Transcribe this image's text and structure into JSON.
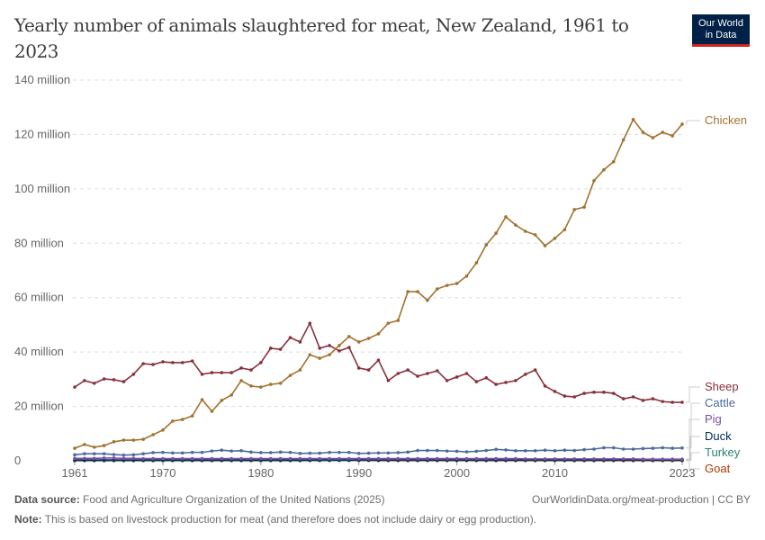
{
  "title": "Yearly number of animals slaughtered for meat, New Zealand, 1961 to 2023",
  "logo": {
    "line1": "Our World",
    "line2": "in Data"
  },
  "footer": {
    "source_label": "Data source:",
    "source_text": "Food and Agriculture Organization of the United Nations (2025)",
    "url": "OurWorldinData.org/meat-production | CC BY",
    "note_label": "Note:",
    "note_text": "This is based on livestock production for meat (and therefore does not include dairy or egg production)."
  },
  "chart_data": {
    "type": "line",
    "title": "Yearly number of animals slaughtered for meat, New Zealand, 1961 to 2023",
    "x_start": 1961,
    "x_end": 2023,
    "xlim": [
      1961,
      2023
    ],
    "ylim": [
      0,
      140000000
    ],
    "x_ticks": [
      "1961",
      "1970",
      "1980",
      "1990",
      "2000",
      "2010",
      "2023"
    ],
    "y_ticks": [
      {
        "value": 0,
        "label": "0"
      },
      {
        "value": 20000000,
        "label": "20 million"
      },
      {
        "value": 40000000,
        "label": "40 million"
      },
      {
        "value": 60000000,
        "label": "60 million"
      },
      {
        "value": 80000000,
        "label": "80 million"
      },
      {
        "value": 100000000,
        "label": "100 million"
      },
      {
        "value": 120000000,
        "label": "120 million"
      },
      {
        "value": 140000000,
        "label": "140 million"
      }
    ],
    "grid": true,
    "legend_placement": "right (end labels)",
    "unit_note": "values in millions",
    "series": [
      {
        "name": "Chicken",
        "color": "#a2722f",
        "values": [
          4.6,
          6,
          5,
          5.6,
          7,
          7.6,
          7.6,
          7.9,
          9.6,
          11.3,
          14.6,
          15.2,
          16.5,
          22.5,
          18.2,
          22.2,
          24.2,
          29.5,
          27.5,
          27.1,
          28.1,
          28.5,
          31.4,
          33.4,
          39,
          37.7,
          39,
          42.4,
          45.7,
          43.7,
          45,
          46.7,
          50.6,
          51.6,
          62.2,
          62.2,
          59,
          63.2,
          64.5,
          65.2,
          67.9,
          72.8,
          79.4,
          83.7,
          89.7,
          86.7,
          84.4,
          83.1,
          79.1,
          81.8,
          85,
          92.4,
          93.3,
          103,
          107,
          110,
          118,
          125.5,
          120.8,
          118.8,
          120.8,
          119.5,
          123.8
        ]
      },
      {
        "name": "Sheep",
        "color": "#883039",
        "values": [
          27.1,
          29.5,
          28.5,
          30.1,
          29.8,
          29.1,
          31.8,
          35.7,
          35.4,
          36.4,
          36.1,
          36.1,
          36.7,
          31.8,
          32.4,
          32.4,
          32.4,
          34.1,
          33.4,
          36.1,
          41.4,
          41,
          45.3,
          43.7,
          50.6,
          41.4,
          42.4,
          40.4,
          41.7,
          34.1,
          33.4,
          37,
          29.5,
          32.1,
          33.4,
          31.1,
          32.1,
          33.1,
          29.5,
          30.8,
          32.1,
          29.1,
          30.5,
          28.1,
          28.8,
          29.5,
          31.8,
          33.4,
          27.5,
          25.5,
          23.8,
          23.5,
          24.8,
          25.2,
          25.2,
          24.8,
          22.8,
          23.5,
          22.2,
          22.8,
          21.8,
          21.5,
          21.5
        ]
      },
      {
        "name": "Cattle",
        "color": "#4c6a9c",
        "values": [
          2.2,
          2.6,
          2.6,
          2.6,
          2.3,
          2.1,
          2.2,
          2.6,
          3.0,
          3.1,
          2.9,
          2.9,
          3.1,
          3.1,
          3.6,
          3.9,
          3.6,
          3.7,
          3.2,
          3.0,
          3.0,
          3.2,
          3.1,
          2.7,
          2.8,
          2.8,
          3.1,
          3.1,
          3.1,
          2.7,
          2.8,
          2.9,
          2.9,
          3.0,
          3.2,
          3.8,
          3.8,
          3.8,
          3.6,
          3.5,
          3.3,
          3.5,
          3.8,
          4.2,
          4.0,
          3.7,
          3.7,
          3.7,
          3.9,
          3.7,
          3.9,
          3.8,
          4.1,
          4.3,
          4.8,
          4.8,
          4.3,
          4.3,
          4.5,
          4.6,
          4.8,
          4.6,
          4.7
        ]
      },
      {
        "name": "Pig",
        "color": "#7b4fa6",
        "values": [
          0.9,
          0.9,
          0.9,
          1.0,
          1.0,
          0.9,
          0.9,
          0.8,
          0.8,
          0.8,
          0.8,
          0.8,
          0.8,
          0.8,
          0.8,
          0.8,
          0.8,
          0.8,
          0.8,
          0.8,
          0.8,
          0.8,
          0.8,
          0.8,
          0.8,
          0.8,
          0.8,
          0.8,
          0.8,
          0.8,
          0.8,
          0.8,
          0.8,
          0.8,
          0.8,
          0.8,
          0.8,
          0.8,
          0.8,
          0.8,
          0.8,
          0.8,
          0.8,
          0.8,
          0.8,
          0.8,
          0.7,
          0.7,
          0.7,
          0.7,
          0.7,
          0.7,
          0.7,
          0.7,
          0.7,
          0.7,
          0.7,
          0.7,
          0.6,
          0.6,
          0.6,
          0.6,
          0.6
        ]
      },
      {
        "name": "Duck",
        "color": "#00295b",
        "values": [
          0.3,
          0.3,
          0.3,
          0.3,
          0.3,
          0.3,
          0.3,
          0.3,
          0.3,
          0.3,
          0.3,
          0.3,
          0.3,
          0.3,
          0.3,
          0.3,
          0.3,
          0.3,
          0.3,
          0.3,
          0.3,
          0.3,
          0.3,
          0.3,
          0.3,
          0.3,
          0.3,
          0.3,
          0.3,
          0.3,
          0.3,
          0.3,
          0.3,
          0.3,
          0.3,
          0.3,
          0.3,
          0.3,
          0.3,
          0.3,
          0.3,
          0.3,
          0.3,
          0.3,
          0.3,
          0.3,
          0.3,
          0.3,
          0.3,
          0.3,
          0.3,
          0.3,
          0.3,
          0.3,
          0.3,
          0.3,
          0.3,
          0.3,
          0.3,
          0.3,
          0.3,
          0.3,
          0.3
        ]
      },
      {
        "name": "Turkey",
        "color": "#2c8465",
        "values": [
          0.1,
          0.1,
          0.1,
          0.1,
          0.1,
          0.1,
          0.1,
          0.1,
          0.1,
          0.1,
          0.1,
          0.1,
          0.1,
          0.1,
          0.1,
          0.1,
          0.1,
          0.1,
          0.1,
          0.1,
          0.1,
          0.1,
          0.1,
          0.1,
          0.1,
          0.1,
          0.1,
          0.1,
          0.1,
          0.2,
          0.2,
          0.2,
          0.2,
          0.2,
          0.2,
          0.2,
          0.2,
          0.2,
          0.2,
          0.2,
          0.2,
          0.2,
          0.2,
          0.2,
          0.2,
          0.2,
          0.2,
          0.2,
          0.2,
          0.2,
          0.2,
          0.2,
          0.2,
          0.2,
          0.2,
          0.2,
          0.2,
          0.2,
          0.2,
          0.2,
          0.2,
          0.2,
          0.2
        ]
      },
      {
        "name": "Goat",
        "color": "#b13507",
        "values": [
          0.02,
          0.02,
          0.02,
          0.02,
          0.02,
          0.02,
          0.02,
          0.02,
          0.02,
          0.02,
          0.02,
          0.02,
          0.02,
          0.02,
          0.02,
          0.02,
          0.02,
          0.02,
          0.02,
          0.02,
          0.02,
          0.02,
          0.03,
          0.03,
          0.05,
          0.07,
          0.08,
          0.08,
          0.08,
          0.08,
          0.08,
          0.07,
          0.06,
          0.05,
          0.05,
          0.05,
          0.05,
          0.05,
          0.05,
          0.05,
          0.05,
          0.05,
          0.05,
          0.05,
          0.05,
          0.05,
          0.05,
          0.05,
          0.05,
          0.05,
          0.05,
          0.05,
          0.05,
          0.05,
          0.05,
          0.05,
          0.05,
          0.05,
          0.05,
          0.05,
          0.05,
          0.05,
          0.05
        ]
      }
    ]
  }
}
